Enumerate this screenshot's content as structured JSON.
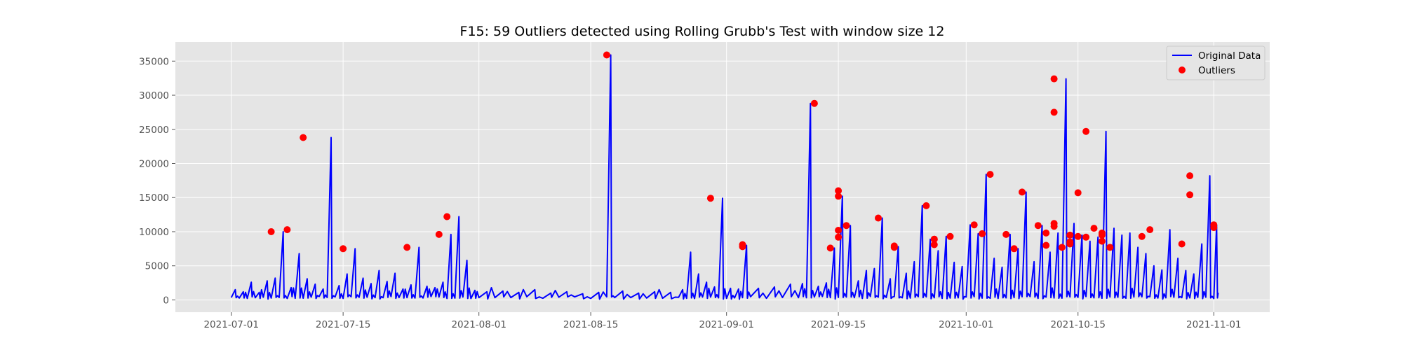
{
  "chart_data": {
    "type": "line",
    "title": "F15: 59 Outliers detected using Rolling Grubb's Test with window size 12",
    "xlabel": "",
    "ylabel": "",
    "x_ticks": [
      "2021-07-01",
      "2021-07-15",
      "2021-08-01",
      "2021-08-15",
      "2021-09-01",
      "2021-09-15",
      "2021-10-01",
      "2021-10-15",
      "2021-11-01"
    ],
    "y_ticks": [
      0,
      5000,
      10000,
      15000,
      20000,
      25000,
      30000,
      35000
    ],
    "xlim": [
      "2021-06-24",
      "2021-11-08"
    ],
    "ylim": [
      -1800,
      37800
    ],
    "grid": true,
    "legend_position": "top-right",
    "legend": [
      "Original Data",
      "Outliers"
    ],
    "colors": {
      "line": "#0000ff",
      "outlier": "#ff0000",
      "background": "#e5e5e5",
      "grid": "#ffffff"
    },
    "series": [
      {
        "name": "Original Data",
        "style": "line",
        "x": [
          "2021-07-01",
          "2021-07-02",
          "2021-07-03",
          "2021-07-04",
          "2021-07-05",
          "2021-07-06",
          "2021-07-07",
          "2021-07-08",
          "2021-07-09",
          "2021-07-10",
          "2021-07-11",
          "2021-07-12",
          "2021-07-13",
          "2021-07-14",
          "2021-07-15",
          "2021-07-16",
          "2021-07-17",
          "2021-07-18",
          "2021-07-19",
          "2021-07-20",
          "2021-07-21",
          "2021-07-22",
          "2021-07-23",
          "2021-07-24",
          "2021-07-25",
          "2021-07-26",
          "2021-07-27",
          "2021-07-28",
          "2021-07-29",
          "2021-07-30",
          "2021-07-31",
          "2021-08-01",
          "2021-08-03",
          "2021-08-05",
          "2021-08-07",
          "2021-08-09",
          "2021-08-11",
          "2021-08-13",
          "2021-08-15",
          "2021-08-17",
          "2021-08-18",
          "2021-08-20",
          "2021-08-22",
          "2021-08-24",
          "2021-08-26",
          "2021-08-27",
          "2021-08-28",
          "2021-08-29",
          "2021-08-30",
          "2021-08-31",
          "2021-09-01",
          "2021-09-02",
          "2021-09-03",
          "2021-09-04",
          "2021-09-06",
          "2021-09-08",
          "2021-09-10",
          "2021-09-11",
          "2021-09-12",
          "2021-09-13",
          "2021-09-14",
          "2021-09-15",
          "2021-09-16",
          "2021-09-17",
          "2021-09-18",
          "2021-09-19",
          "2021-09-20",
          "2021-09-21",
          "2021-09-22",
          "2021-09-23",
          "2021-09-24",
          "2021-09-25",
          "2021-09-26",
          "2021-09-27",
          "2021-09-28",
          "2021-09-29",
          "2021-09-30",
          "2021-10-01",
          "2021-10-02",
          "2021-10-03",
          "2021-10-04",
          "2021-10-05",
          "2021-10-06",
          "2021-10-07",
          "2021-10-08",
          "2021-10-09",
          "2021-10-10",
          "2021-10-11",
          "2021-10-12",
          "2021-10-13",
          "2021-10-14",
          "2021-10-15",
          "2021-10-16",
          "2021-10-17",
          "2021-10-18",
          "2021-10-19",
          "2021-10-20",
          "2021-10-21",
          "2021-10-22",
          "2021-10-23",
          "2021-10-24",
          "2021-10-25",
          "2021-10-26",
          "2021-10-27",
          "2021-10-28",
          "2021-10-29",
          "2021-10-30",
          "2021-10-31",
          "2021-11-01"
        ],
        "y": [
          1500,
          1200,
          2600,
          1100,
          2800,
          3200,
          10000,
          1800,
          6800,
          3100,
          2300,
          1600,
          23800,
          2100,
          3800,
          7500,
          3200,
          2400,
          4300,
          2700,
          3900,
          1600,
          2200,
          7700,
          2000,
          1800,
          2600,
          9600,
          12200,
          5800,
          1400,
          1200,
          1300,
          1100,
          1500,
          1000,
          1200,
          900,
          1100,
          35900,
          1300,
          1000,
          1200,
          1100,
          1500,
          7000,
          3800,
          2600,
          1900,
          14900,
          1700,
          1600,
          8000,
          1700,
          1900,
          2300,
          2400,
          28800,
          2000,
          2500,
          7600,
          15200,
          10900,
          2800,
          4300,
          4600,
          12000,
          3100,
          7800,
          3900,
          5600,
          13800,
          8900,
          7200,
          9300,
          5500,
          4900,
          11000,
          9700,
          18400,
          6100,
          4800,
          9600,
          7500,
          15800,
          5600,
          10900,
          7000,
          9800,
          32400,
          11200,
          9500,
          8600,
          9200,
          24700,
          10500,
          9500,
          9800,
          7700,
          6800,
          5000,
          4400,
          10300,
          6100,
          4300,
          3800,
          8200,
          18200,
          11000
        ]
      },
      {
        "name": "Outliers",
        "style": "scatter",
        "x": [
          "2021-07-06",
          "2021-07-08",
          "2021-07-10",
          "2021-07-15",
          "2021-07-23",
          "2021-07-27",
          "2021-07-28",
          "2021-08-17",
          "2021-08-30",
          "2021-09-03",
          "2021-09-03",
          "2021-09-12",
          "2021-09-14",
          "2021-09-15",
          "2021-09-15",
          "2021-09-15",
          "2021-09-15",
          "2021-09-16",
          "2021-09-20",
          "2021-09-22",
          "2021-09-22",
          "2021-09-26",
          "2021-09-27",
          "2021-09-27",
          "2021-09-27",
          "2021-09-29",
          "2021-10-02",
          "2021-10-03",
          "2021-10-04",
          "2021-10-06",
          "2021-10-07",
          "2021-10-08",
          "2021-10-10",
          "2021-10-11",
          "2021-10-11",
          "2021-10-12",
          "2021-10-12",
          "2021-10-12",
          "2021-10-12",
          "2021-10-13",
          "2021-10-14",
          "2021-10-14",
          "2021-10-14",
          "2021-10-15",
          "2021-10-15",
          "2021-10-16",
          "2021-10-16",
          "2021-10-17",
          "2021-10-18",
          "2021-10-18",
          "2021-10-18",
          "2021-10-19",
          "2021-10-23",
          "2021-10-24",
          "2021-10-28",
          "2021-10-29",
          "2021-10-29",
          "2021-11-01",
          "2021-11-01"
        ],
        "y": [
          10000,
          10300,
          23800,
          7500,
          7700,
          9600,
          12200,
          35900,
          14900,
          7800,
          8100,
          28800,
          7600,
          15200,
          16000,
          10200,
          9200,
          10900,
          12000,
          7900,
          7700,
          13800,
          8100,
          8900,
          8900,
          9300,
          11000,
          9700,
          18400,
          9600,
          7500,
          15800,
          10900,
          8000,
          9800,
          32400,
          27500,
          10800,
          11200,
          7700,
          8500,
          9500,
          8200,
          9300,
          15700,
          24700,
          9200,
          10500,
          8600,
          9500,
          9800,
          7700,
          9300,
          10300,
          8200,
          15400,
          18200,
          10600,
          11000
        ]
      }
    ]
  }
}
